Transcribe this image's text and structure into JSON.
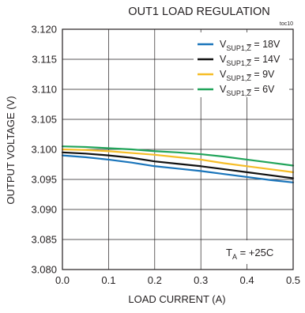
{
  "chart_data": {
    "type": "line",
    "title": "OUT1 LOAD REGULATION",
    "figure_tag": "toc10",
    "xlabel": "LOAD CURRENT (A)",
    "ylabel": "OUTPUT VOLTAGE (V)",
    "xlim": [
      0,
      0.5
    ],
    "ylim": [
      3.08,
      3.12
    ],
    "x_ticks": [
      "0.0",
      "0.1",
      "0.2",
      "0.3",
      "0.4",
      "0.5"
    ],
    "y_ticks": [
      "3.080",
      "3.085",
      "3.090",
      "3.095",
      "3.100",
      "3.105",
      "3.110",
      "3.115",
      "3.120"
    ],
    "grid": true,
    "legend_position": "top-right",
    "x": [
      0.0,
      0.05,
      0.1,
      0.15,
      0.2,
      0.25,
      0.3,
      0.35,
      0.4,
      0.45,
      0.5
    ],
    "series": [
      {
        "name_parts": {
          "base": "V",
          "sub": "SUP1,",
          "zbar": "Z",
          "rest": " = 18V"
        },
        "color": "#1a75bb",
        "values": [
          3.099,
          3.0987,
          3.0983,
          3.0978,
          3.0972,
          3.0968,
          3.0964,
          3.0959,
          3.0954,
          3.0949,
          3.0945
        ]
      },
      {
        "name_parts": {
          "base": "V",
          "sub": "SUP1,",
          "zbar": "Z",
          "rest": " = 14V"
        },
        "color": "#111111",
        "values": [
          3.0995,
          3.0993,
          3.099,
          3.0986,
          3.098,
          3.0976,
          3.0972,
          3.0967,
          3.0962,
          3.0957,
          3.0952
        ]
      },
      {
        "name_parts": {
          "base": "V",
          "sub": "SUP1,",
          "zbar": "Z",
          "rest": " = 9V"
        },
        "color": "#f6bd27",
        "values": [
          3.1,
          3.0999,
          3.0997,
          3.0994,
          3.0991,
          3.0987,
          3.0983,
          3.0977,
          3.0972,
          3.0967,
          3.0962
        ]
      },
      {
        "name_parts": {
          "base": "V",
          "sub": "SUP1,",
          "zbar": "Z",
          "rest": " = 6V"
        },
        "color": "#21a45a",
        "values": [
          3.1005,
          3.1004,
          3.1002,
          3.1,
          3.0997,
          3.0995,
          3.0992,
          3.0988,
          3.0983,
          3.0978,
          3.0973
        ]
      }
    ],
    "annotation": {
      "base": "T",
      "sub": "A",
      "rest": " = +25C"
    }
  }
}
